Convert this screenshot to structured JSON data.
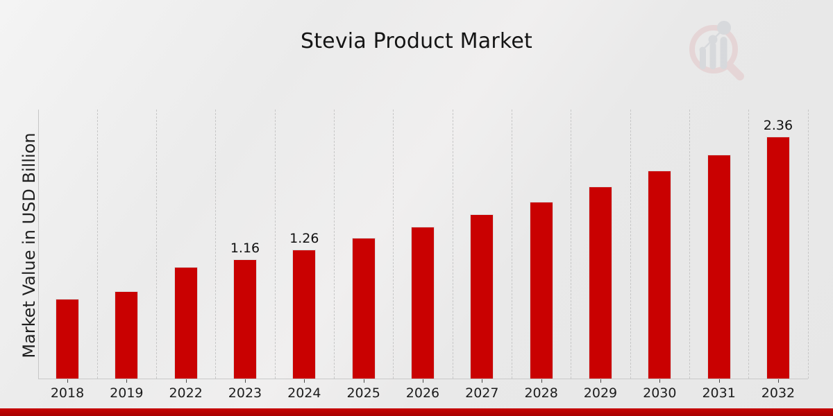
{
  "title": "Stevia Product Market",
  "y_axis_label": "Market Value in USD Billion",
  "colors": {
    "bar": "#c90101",
    "banner": "#b70202",
    "gridline": "#c7c7c7",
    "background": "#ececec",
    "logo_pink": "#e3c6c7",
    "logo_gray": "#c9ccd2"
  },
  "footer": {
    "banner": "decorative-red-strip"
  },
  "logo": {
    "name": "magnifier-bar-chart-watermark"
  },
  "chart_data": {
    "type": "bar",
    "title": "Stevia Product Market",
    "xlabel": "",
    "ylabel": "Market Value in USD Billion",
    "categories": [
      "2018",
      "2019",
      "2022",
      "2023",
      "2024",
      "2025",
      "2026",
      "2027",
      "2028",
      "2029",
      "2030",
      "2031",
      "2032"
    ],
    "values": [
      0.78,
      0.85,
      1.09,
      1.16,
      1.26,
      1.37,
      1.48,
      1.6,
      1.72,
      1.87,
      2.03,
      2.18,
      2.36
    ],
    "value_labels": {
      "2023": "1.16",
      "2024": "1.26",
      "2032": "2.36"
    },
    "bar_color": "#c90101",
    "ylim": [
      0,
      2.62
    ],
    "grid": "vertical dashed lines between categories",
    "legend": "none",
    "y_axis_ticks": "none (no numeric ticks shown)"
  }
}
